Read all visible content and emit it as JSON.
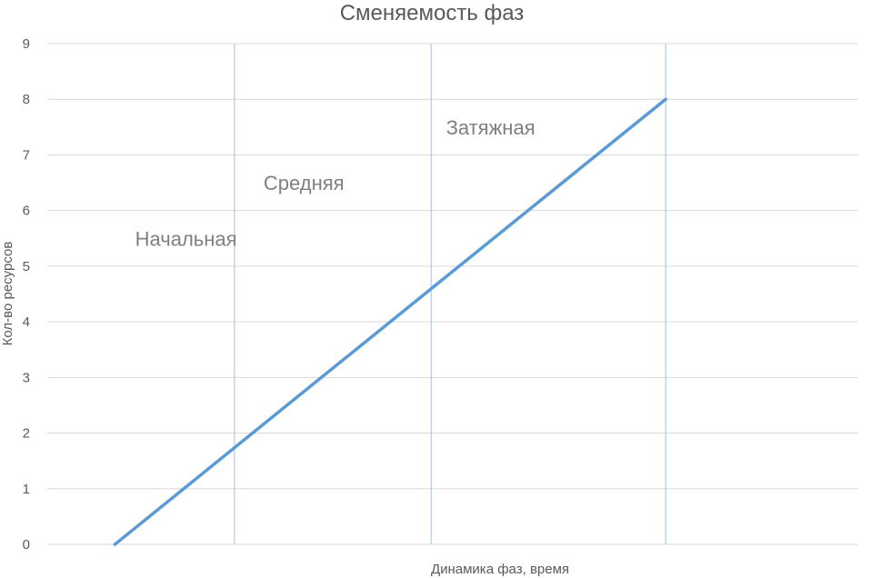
{
  "chart_data": {
    "type": "line",
    "title": "Сменяемость фаз",
    "xlabel": "Динамика фаз, время",
    "ylabel": "Кол-во ресурсов",
    "ylim": [
      0,
      9
    ],
    "xlim": [
      0,
      12
    ],
    "yticks": [
      "0",
      "1",
      "2",
      "3",
      "4",
      "5",
      "6",
      "7",
      "8",
      "9"
    ],
    "grid": "horizontal",
    "series": [
      {
        "x": [
          1.0,
          9.15
        ],
        "y": [
          0,
          8
        ],
        "color": "#5b9bd5"
      }
    ],
    "phase_boundaries": [
      2.77,
      5.68,
      9.15
    ],
    "annotations": [
      {
        "text": "Начальная",
        "x": 1.3,
        "y": 5.5
      },
      {
        "text": "Средняя",
        "x": 3.2,
        "y": 6.5
      },
      {
        "text": "Затяжная",
        "x": 5.9,
        "y": 7.5
      }
    ],
    "colors": {
      "line": "#5b9bd5",
      "boundary": "#9dc3e6",
      "grid": "#d9d9d9"
    }
  }
}
